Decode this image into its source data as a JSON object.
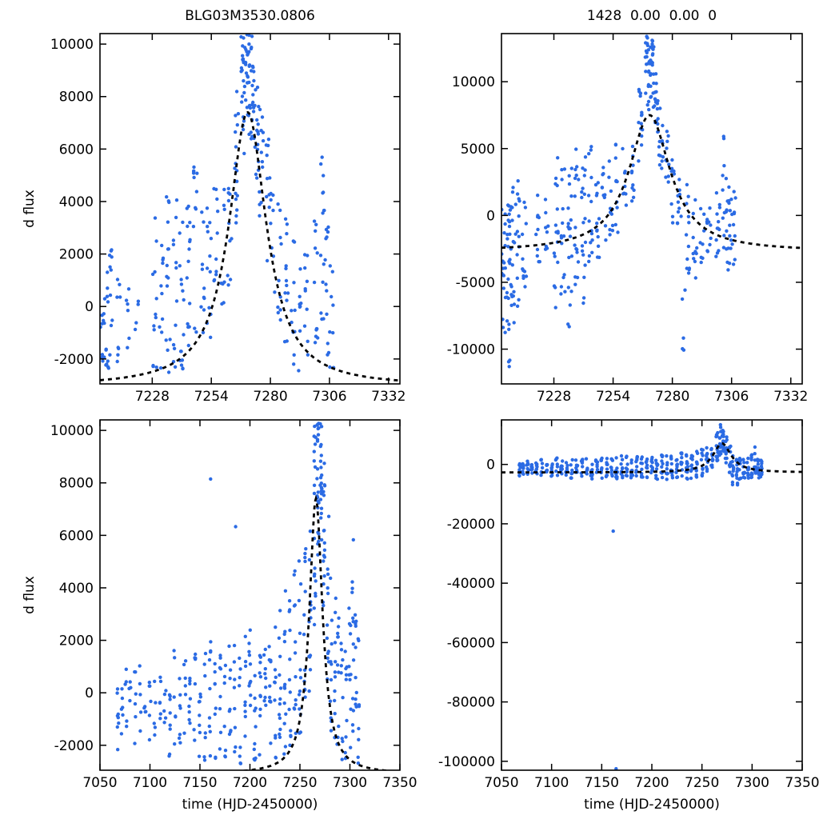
{
  "figure": {
    "background": "#ffffff",
    "point_color": "#2b6be4",
    "curve_color": "#000000",
    "axis_color": "#000000"
  },
  "chart_data": [
    {
      "id": "top-left",
      "type": "scatter",
      "title": "BLG03M3530.0806",
      "xlabel": "",
      "ylabel": "d flux",
      "xlim": [
        7205,
        7337
      ],
      "ylim": [
        -2950,
        10400
      ],
      "xticks": [
        7228,
        7254,
        7280,
        7306,
        7332
      ],
      "yticks": [
        -2000,
        0,
        2000,
        4000,
        6000,
        8000,
        10000
      ],
      "grid": false,
      "curve": {
        "type": "lorentzian",
        "baseline": -3050,
        "amplitude": 10450,
        "t0": 7270,
        "width": 10,
        "style": "dashed"
      },
      "stripe_format": [
        "x_center",
        "n_points",
        "y_min",
        "y_max"
      ],
      "stripes": [
        [
          7206,
          10,
          -2700,
          -200
        ],
        [
          7208,
          12,
          -2500,
          1600
        ],
        [
          7210,
          10,
          -1900,
          2600
        ],
        [
          7213,
          8,
          -2100,
          1100
        ],
        [
          7217,
          6,
          -1600,
          800
        ],
        [
          7221,
          4,
          -1300,
          400
        ],
        [
          7229,
          12,
          -2450,
          3600
        ],
        [
          7232,
          10,
          -2350,
          2500
        ],
        [
          7235,
          14,
          -2550,
          4500
        ],
        [
          7238,
          12,
          -2600,
          4200
        ],
        [
          7241,
          16,
          -2500,
          3600
        ],
        [
          7244,
          14,
          -2250,
          4800
        ],
        [
          7247,
          12,
          -1850,
          5600
        ],
        [
          7250,
          10,
          -1500,
          3600
        ],
        [
          7253,
          12,
          -1250,
          4500
        ],
        [
          7256,
          10,
          -850,
          5200
        ],
        [
          7259,
          8,
          -450,
          5400
        ],
        [
          7262,
          10,
          400,
          6200
        ],
        [
          7265,
          16,
          2800,
          8300
        ],
        [
          7268,
          22,
          5500,
          10380
        ],
        [
          7270,
          24,
          6500,
          10380
        ],
        [
          7272,
          20,
          6000,
          10350
        ],
        [
          7274,
          16,
          4500,
          9200
        ],
        [
          7276,
          12,
          3000,
          8100
        ],
        [
          7279,
          10,
          1500,
          6600
        ],
        [
          7281,
          8,
          400,
          4600
        ],
        [
          7284,
          10,
          -900,
          4100
        ],
        [
          7287,
          12,
          -1600,
          3500
        ],
        [
          7290,
          10,
          -2250,
          2500
        ],
        [
          7293,
          8,
          -2450,
          1500
        ],
        [
          7296,
          10,
          -2550,
          2000
        ],
        [
          7300,
          12,
          -2250,
          3400
        ],
        [
          7303,
          14,
          -1550,
          6400
        ],
        [
          7305,
          12,
          -2050,
          3200
        ],
        [
          7307,
          8,
          -2350,
          2800
        ]
      ]
    },
    {
      "id": "top-right",
      "type": "scatter",
      "title": "1428  0.00  0.00  0",
      "xlabel": "",
      "ylabel": "",
      "xlim": [
        7205,
        7337
      ],
      "ylim": [
        -12600,
        13600
      ],
      "xticks": [
        7228,
        7254,
        7280,
        7306,
        7332
      ],
      "yticks": [
        -10000,
        -5000,
        0,
        5000,
        10000
      ],
      "grid": false,
      "curve": {
        "type": "lorentzian",
        "baseline": -2700,
        "amplitude": 10200,
        "t0": 7270,
        "width": 11,
        "style": "dashed"
      },
      "stripe_format": [
        "x_center",
        "n_points",
        "y_min",
        "y_max"
      ],
      "stripes": [
        [
          7206,
          18,
          -9500,
          1800
        ],
        [
          7208,
          24,
          -11900,
          1500
        ],
        [
          7210,
          18,
          -8200,
          2500
        ],
        [
          7212,
          14,
          -7200,
          3000
        ],
        [
          7215,
          12,
          -5600,
          1200
        ],
        [
          7221,
          10,
          -4200,
          2000
        ],
        [
          7225,
          8,
          -3200,
          1500
        ],
        [
          7229,
          16,
          -7600,
          4500
        ],
        [
          7232,
          14,
          -6200,
          4000
        ],
        [
          7235,
          18,
          -8600,
          5500
        ],
        [
          7238,
          16,
          -5200,
          5800
        ],
        [
          7241,
          18,
          -6600,
          4500
        ],
        [
          7244,
          14,
          -4200,
          5600
        ],
        [
          7247,
          12,
          -3600,
          4800
        ],
        [
          7250,
          10,
          -2600,
          4000
        ],
        [
          7253,
          12,
          -2100,
          5000
        ],
        [
          7256,
          10,
          -1600,
          5500
        ],
        [
          7259,
          8,
          -600,
          5100
        ],
        [
          7263,
          10,
          900,
          6500
        ],
        [
          7266,
          14,
          3800,
          9500
        ],
        [
          7269,
          22,
          7500,
          13400
        ],
        [
          7271,
          24,
          8000,
          13100
        ],
        [
          7273,
          18,
          6000,
          11200
        ],
        [
          7275,
          12,
          3500,
          8600
        ],
        [
          7278,
          10,
          900,
          6500
        ],
        [
          7280,
          8,
          -600,
          4500
        ],
        [
          7283,
          10,
          -2600,
          3500
        ],
        [
          7285,
          5,
          -10600,
          -4200
        ],
        [
          7287,
          12,
          -4600,
          2500
        ],
        [
          7290,
          10,
          -5600,
          1500
        ],
        [
          7293,
          8,
          -4600,
          600
        ],
        [
          7296,
          10,
          -3600,
          1500
        ],
        [
          7300,
          12,
          -3100,
          3500
        ],
        [
          7303,
          16,
          -2600,
          6600
        ],
        [
          7305,
          14,
          -4100,
          3000
        ],
        [
          7307,
          10,
          -3900,
          2500
        ]
      ]
    },
    {
      "id": "bottom-left",
      "type": "scatter",
      "title": "",
      "xlabel": "time (HJD-2450000)",
      "ylabel": "d flux",
      "xlim": [
        7050,
        7350
      ],
      "ylim": [
        -2950,
        10400
      ],
      "xticks": [
        7050,
        7100,
        7150,
        7200,
        7250,
        7300,
        7350
      ],
      "yticks": [
        -2000,
        0,
        2000,
        4000,
        6000,
        8000,
        10000
      ],
      "grid": false,
      "curve": {
        "type": "lorentzian",
        "baseline": -3100,
        "amplitude": 10500,
        "t0": 7266,
        "width": 8,
        "style": "dashed"
      },
      "stripe_format": [
        "x_center",
        "n_points",
        "y_min",
        "y_max"
      ],
      "stripes": [
        [
          7068,
          8,
          -2200,
          600
        ],
        [
          7072,
          6,
          -1800,
          400
        ],
        [
          7076,
          5,
          -1500,
          900
        ],
        [
          7080,
          4,
          -1000,
          500
        ],
        [
          7085,
          6,
          -2000,
          800
        ],
        [
          7090,
          5,
          -1500,
          1200
        ],
        [
          7095,
          4,
          -900,
          700
        ],
        [
          7100,
          6,
          -2300,
          900
        ],
        [
          7105,
          5,
          -1800,
          1400
        ],
        [
          7110,
          6,
          -1200,
          1100
        ],
        [
          7115,
          5,
          -2000,
          800
        ],
        [
          7120,
          8,
          -2500,
          1500
        ],
        [
          7125,
          6,
          -2000,
          1800
        ],
        [
          7130,
          7,
          -2400,
          1300
        ],
        [
          7135,
          6,
          -1800,
          1500
        ],
        [
          7140,
          8,
          -2600,
          1700
        ],
        [
          7145,
          7,
          -2200,
          2000
        ],
        [
          7150,
          8,
          -2500,
          1800
        ],
        [
          7155,
          7,
          -2700,
          2100
        ],
        [
          7160,
          9,
          -2500,
          2200
        ],
        [
          7161,
          1,
          8050,
          8150
        ],
        [
          7165,
          8,
          -2600,
          1900
        ],
        [
          7170,
          8,
          -2400,
          2300
        ],
        [
          7175,
          7,
          -2700,
          2000
        ],
        [
          7180,
          8,
          -2500,
          2400
        ],
        [
          7185,
          8,
          -2300,
          2600
        ],
        [
          7186,
          1,
          6250,
          6350
        ],
        [
          7190,
          8,
          -2700,
          2200
        ],
        [
          7195,
          8,
          -2500,
          2500
        ],
        [
          7200,
          10,
          -2700,
          2800
        ],
        [
          7205,
          10,
          -2600,
          2600
        ],
        [
          7210,
          10,
          -2500,
          2400
        ],
        [
          7215,
          9,
          -2700,
          2300
        ],
        [
          7220,
          10,
          -2600,
          3000
        ],
        [
          7225,
          10,
          -2500,
          3300
        ],
        [
          7230,
          12,
          -2700,
          3600
        ],
        [
          7235,
          12,
          -2600,
          4200
        ],
        [
          7240,
          12,
          -2500,
          3800
        ],
        [
          7245,
          12,
          -2200,
          4800
        ],
        [
          7250,
          12,
          -1800,
          5200
        ],
        [
          7255,
          12,
          -1200,
          5600
        ],
        [
          7260,
          12,
          0,
          6500
        ],
        [
          7265,
          18,
          2500,
          10380
        ],
        [
          7268,
          22,
          5000,
          10380
        ],
        [
          7271,
          20,
          5500,
          10350
        ],
        [
          7274,
          16,
          3000,
          9000
        ],
        [
          7278,
          12,
          500,
          7000
        ],
        [
          7281,
          10,
          -1500,
          5000
        ],
        [
          7285,
          10,
          -2500,
          4000
        ],
        [
          7288,
          10,
          -2700,
          3000
        ],
        [
          7292,
          9,
          -2600,
          2400
        ],
        [
          7296,
          9,
          -2700,
          2200
        ],
        [
          7300,
          10,
          -2400,
          3400
        ],
        [
          7303,
          12,
          -1800,
          6300
        ],
        [
          7306,
          10,
          -2500,
          3000
        ],
        [
          7309,
          8,
          -2700,
          2500
        ]
      ]
    },
    {
      "id": "bottom-right",
      "type": "scatter",
      "title": "",
      "xlabel": "time (HJD-2450000)",
      "ylabel": "",
      "xlim": [
        7050,
        7350
      ],
      "ylim": [
        -103000,
        15000
      ],
      "xticks": [
        7050,
        7100,
        7150,
        7200,
        7250,
        7300,
        7350
      ],
      "yticks": [
        0,
        -20000,
        -40000,
        -60000,
        -80000,
        -100000
      ],
      "grid": false,
      "curve": {
        "type": "lorentzian",
        "baseline": -2700,
        "amplitude": 9800,
        "t0": 7270,
        "width": 11,
        "style": "dashed"
      },
      "stripe_format": [
        "x_center",
        "n_points",
        "y_min",
        "y_max"
      ],
      "stripes": [
        [
          7068,
          9,
          -4500,
          1500
        ],
        [
          7072,
          8,
          -4000,
          1200
        ],
        [
          7076,
          7,
          -3500,
          1800
        ],
        [
          7080,
          6,
          -3000,
          1000
        ],
        [
          7085,
          8,
          -4200,
          1500
        ],
        [
          7090,
          7,
          -3800,
          2000
        ],
        [
          7095,
          6,
          -3000,
          1500
        ],
        [
          7100,
          8,
          -4500,
          1800
        ],
        [
          7105,
          7,
          -4000,
          2200
        ],
        [
          7110,
          8,
          -3500,
          2000
        ],
        [
          7115,
          7,
          -4200,
          1500
        ],
        [
          7120,
          9,
          -4800,
          2200
        ],
        [
          7125,
          8,
          -4000,
          2500
        ],
        [
          7130,
          8,
          -4500,
          2000
        ],
        [
          7135,
          8,
          -3800,
          2200
        ],
        [
          7140,
          9,
          -5000,
          2500
        ],
        [
          7145,
          8,
          -4200,
          2800
        ],
        [
          7150,
          9,
          -4800,
          2500
        ],
        [
          7155,
          8,
          -5200,
          2800
        ],
        [
          7160,
          9,
          -5000,
          3000
        ],
        [
          7161,
          1,
          -22700,
          -22300
        ],
        [
          7164,
          1,
          -102900,
          -102400
        ],
        [
          7165,
          8,
          -5000,
          2600
        ],
        [
          7170,
          9,
          -4500,
          3000
        ],
        [
          7175,
          8,
          -5200,
          2800
        ],
        [
          7180,
          9,
          -4800,
          3200
        ],
        [
          7185,
          9,
          -4500,
          3400
        ],
        [
          7190,
          9,
          -5200,
          3000
        ],
        [
          7195,
          9,
          -4800,
          3200
        ],
        [
          7200,
          10,
          -5200,
          3500
        ],
        [
          7205,
          10,
          -5000,
          3300
        ],
        [
          7210,
          10,
          -4800,
          3200
        ],
        [
          7215,
          9,
          -5200,
          3000
        ],
        [
          7220,
          10,
          -5000,
          3600
        ],
        [
          7225,
          10,
          -4800,
          3800
        ],
        [
          7230,
          11,
          -5200,
          4000
        ],
        [
          7235,
          11,
          -5000,
          4500
        ],
        [
          7240,
          11,
          -4800,
          4200
        ],
        [
          7245,
          11,
          -4500,
          5000
        ],
        [
          7250,
          11,
          -4000,
          5200
        ],
        [
          7255,
          11,
          -3500,
          5600
        ],
        [
          7260,
          11,
          -2000,
          6500
        ],
        [
          7265,
          14,
          1000,
          11000
        ],
        [
          7268,
          16,
          3000,
          13400
        ],
        [
          7271,
          15,
          3500,
          13000
        ],
        [
          7274,
          12,
          0,
          9500
        ],
        [
          7278,
          10,
          -3000,
          7000
        ],
        [
          7281,
          10,
          -9000,
          3000
        ],
        [
          7285,
          10,
          -7500,
          2000
        ],
        [
          7288,
          9,
          -6000,
          2500
        ],
        [
          7292,
          9,
          -5500,
          2200
        ],
        [
          7296,
          9,
          -5000,
          2400
        ],
        [
          7300,
          10,
          -4500,
          3400
        ],
        [
          7303,
          11,
          -3500,
          6000
        ],
        [
          7306,
          10,
          -4800,
          3000
        ],
        [
          7309,
          8,
          -5000,
          2500
        ]
      ]
    }
  ]
}
